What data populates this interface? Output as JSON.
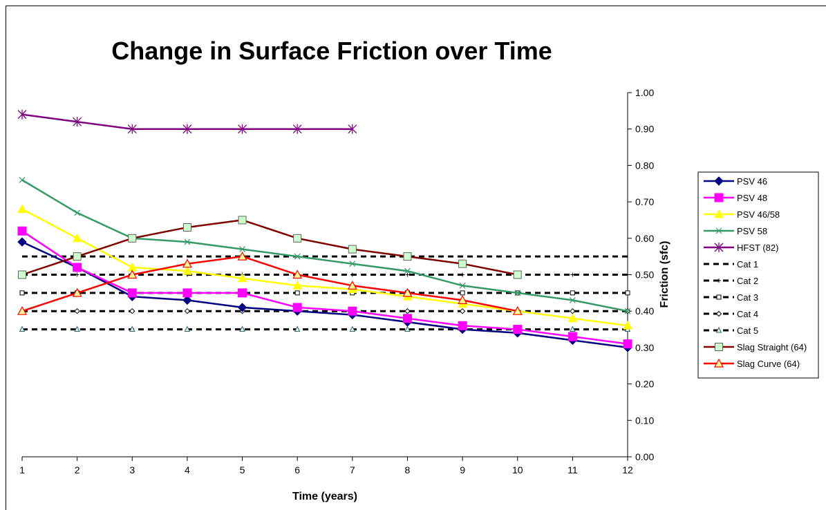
{
  "chart_data": {
    "type": "line",
    "title": "Change in Surface Friction over Time",
    "xlabel": "Time (years)",
    "ylabel": "Friction (sfc)",
    "x": [
      1,
      2,
      3,
      4,
      5,
      6,
      7,
      8,
      9,
      10,
      11,
      12
    ],
    "xlim": [
      1,
      12
    ],
    "ylim": [
      0.0,
      1.0
    ],
    "y_ticks": [
      "0.00",
      "0.10",
      "0.20",
      "0.30",
      "0.40",
      "0.50",
      "0.60",
      "0.70",
      "0.80",
      "0.90",
      "1.00"
    ],
    "y_axis_side": "right",
    "grid": false,
    "legend_position": "right",
    "series": [
      {
        "name": "PSV 46",
        "color": "#000080",
        "marker": "diamond",
        "dashed": false,
        "values": [
          0.59,
          0.52,
          0.44,
          0.43,
          0.41,
          0.4,
          0.39,
          0.37,
          0.35,
          0.34,
          0.32,
          0.3
        ]
      },
      {
        "name": "PSV 48",
        "color": "#FF00FF",
        "marker": "square",
        "dashed": false,
        "values": [
          0.62,
          0.52,
          0.45,
          0.45,
          0.45,
          0.41,
          0.4,
          0.38,
          0.36,
          0.35,
          0.33,
          0.31
        ]
      },
      {
        "name": "PSV 46/58",
        "color": "#FFFF00",
        "marker": "triangle",
        "dashed": false,
        "values": [
          0.68,
          0.6,
          0.52,
          0.51,
          0.49,
          0.47,
          0.46,
          0.44,
          0.42,
          0.4,
          0.38,
          0.36
        ]
      },
      {
        "name": "PSV 58",
        "color": "#339966",
        "marker": "x",
        "dashed": false,
        "values": [
          0.76,
          0.67,
          0.6,
          0.59,
          0.57,
          0.55,
          0.53,
          0.51,
          0.47,
          0.45,
          0.43,
          0.4
        ]
      },
      {
        "name": "HFST (82)",
        "color": "#800080",
        "marker": "star",
        "dashed": false,
        "values": [
          0.94,
          0.92,
          0.9,
          0.9,
          0.9,
          0.9,
          0.9,
          null,
          null,
          null,
          null,
          null
        ]
      },
      {
        "name": "Cat 1",
        "color": "#000000",
        "marker": "none",
        "dashed": true,
        "values": [
          0.55,
          0.55,
          0.55,
          0.55,
          0.55,
          0.55,
          0.55,
          0.55,
          0.55,
          0.55,
          0.55,
          0.55
        ]
      },
      {
        "name": "Cat 2",
        "color": "#000000",
        "marker": "plus",
        "dashed": true,
        "values": [
          0.5,
          0.5,
          0.5,
          0.5,
          0.5,
          0.5,
          0.5,
          0.5,
          0.5,
          0.5,
          0.5,
          0.5
        ]
      },
      {
        "name": "Cat 3",
        "color": "#000000",
        "marker": "hollow-square",
        "dashed": true,
        "values": [
          0.45,
          0.45,
          0.45,
          0.45,
          0.45,
          0.45,
          0.45,
          0.45,
          0.45,
          0.45,
          0.45,
          0.45
        ]
      },
      {
        "name": "Cat 4",
        "color": "#000000",
        "marker": "hollow-diamond",
        "dashed": true,
        "values": [
          0.4,
          0.4,
          0.4,
          0.4,
          0.4,
          0.4,
          0.4,
          0.4,
          0.4,
          0.4,
          0.4,
          0.4
        ]
      },
      {
        "name": "Cat 5",
        "color": "#000000",
        "marker": "hollow-triangle",
        "dashed": true,
        "values": [
          0.35,
          0.35,
          0.35,
          0.35,
          0.35,
          0.35,
          0.35,
          0.35,
          0.35,
          0.35,
          0.35,
          0.35
        ]
      },
      {
        "name": "Slag Straight (64)",
        "color": "#800000",
        "marker": "green-square",
        "dashed": false,
        "values": [
          0.5,
          0.55,
          0.6,
          0.63,
          0.65,
          0.6,
          0.57,
          0.55,
          0.53,
          0.5,
          null,
          null
        ]
      },
      {
        "name": "Slag Curve (64)",
        "color": "#FF0000",
        "marker": "yellow-triangle",
        "dashed": false,
        "values": [
          0.4,
          0.45,
          0.5,
          0.53,
          0.55,
          0.5,
          0.47,
          0.45,
          0.43,
          0.4,
          null,
          null
        ]
      }
    ]
  }
}
